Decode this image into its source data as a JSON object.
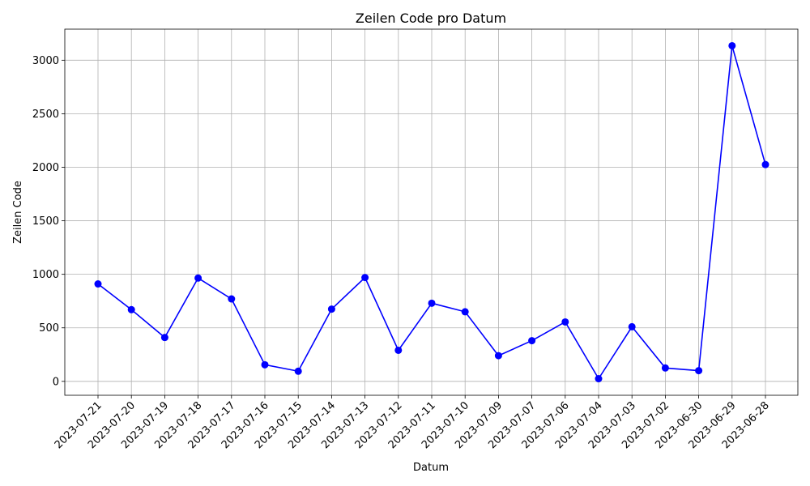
{
  "chart_data": {
    "type": "line",
    "title": "Zeilen Code pro Datum",
    "xlabel": "Datum",
    "ylabel": "Zeilen Code",
    "categories": [
      "2023-07-21",
      "2023-07-20",
      "2023-07-19",
      "2023-07-18",
      "2023-07-17",
      "2023-07-16",
      "2023-07-15",
      "2023-07-14",
      "2023-07-13",
      "2023-07-12",
      "2023-07-11",
      "2023-07-10",
      "2023-07-09",
      "2023-07-07",
      "2023-07-06",
      "2023-07-04",
      "2023-07-03",
      "2023-07-02",
      "2023-06-30",
      "2023-06-29",
      "2023-06-28"
    ],
    "series": [
      {
        "values": [
          910,
          670,
          410,
          965,
          770,
          155,
          95,
          675,
          970,
          290,
          730,
          650,
          240,
          380,
          555,
          25,
          510,
          125,
          100,
          3135,
          2025
        ],
        "color": "#0000ff"
      }
    ],
    "yticks": [
      0,
      500,
      1000,
      1500,
      2000,
      2500,
      3000
    ],
    "ylim": [
      -130,
      3290
    ],
    "grid": true,
    "marker": "circle"
  }
}
